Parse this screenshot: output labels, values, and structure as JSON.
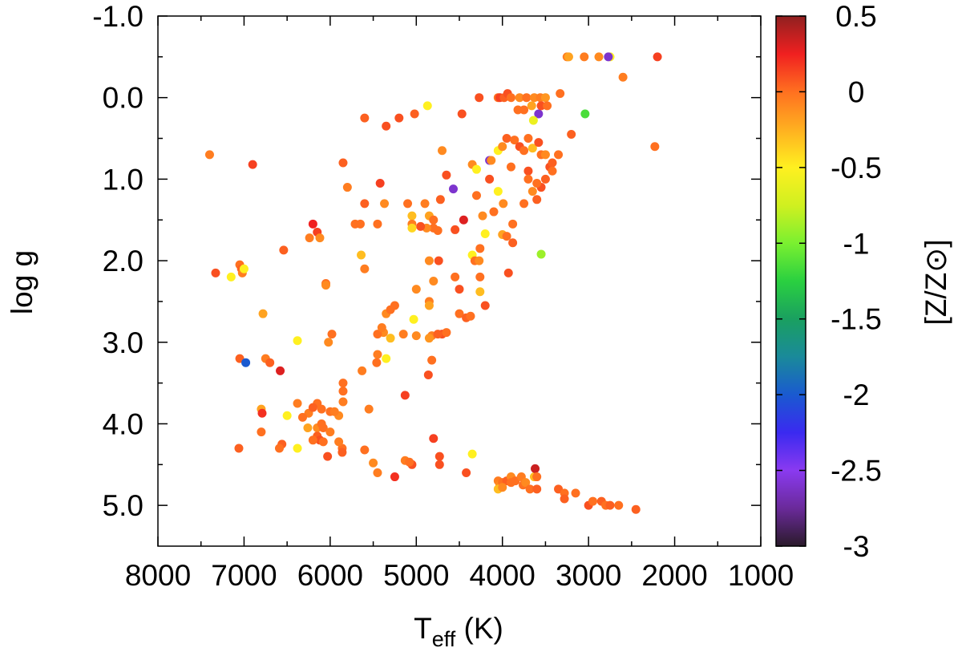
{
  "chart_data": {
    "type": "scatter",
    "xlabel": "T",
    "xlabel_sub": "eff",
    "xlabel_unit": " (K)",
    "ylabel": "log g",
    "colorbar_label": "[Z/Z⊙]",
    "xlim": [
      8000,
      1000
    ],
    "ylim": [
      5.5,
      -1.0
    ],
    "x_reversed": true,
    "y_reversed": true,
    "x_ticks": [
      8000,
      7000,
      6000,
      5000,
      4000,
      3000,
      2000,
      1000
    ],
    "x_tick_labels": [
      "8000",
      "7000",
      "6000",
      "5000",
      "4000",
      "3000",
      "2000",
      "1000"
    ],
    "y_ticks": [
      -1.0,
      0.0,
      1.0,
      2.0,
      3.0,
      4.0,
      5.0
    ],
    "y_tick_labels": [
      "-1.0",
      "0.0",
      "1.0",
      "2.0",
      "3.0",
      "4.0",
      "5.0"
    ],
    "colorbar_range": [
      -3,
      0.5
    ],
    "colorbar_ticks": [
      0.5,
      0,
      -0.5,
      -1,
      -1.5,
      -2,
      -2.5,
      -3
    ],
    "colorbar_tick_labels": [
      "0.5",
      "0",
      "-0.5",
      "-1",
      "-1.5",
      "-2",
      "-2.5",
      "-3"
    ],
    "colormap": [
      [
        -3.0,
        "#2a1a2a"
      ],
      [
        -2.75,
        "#6a2a9a"
      ],
      [
        -2.5,
        "#8a3af0"
      ],
      [
        -2.25,
        "#3a2af0"
      ],
      [
        -2.0,
        "#1a5ad0"
      ],
      [
        -1.75,
        "#1a8a9a"
      ],
      [
        -1.5,
        "#1aa060"
      ],
      [
        -1.25,
        "#2ad040"
      ],
      [
        -1.0,
        "#7af030"
      ],
      [
        -0.75,
        "#d0f020"
      ],
      [
        -0.5,
        "#fff020"
      ],
      [
        -0.25,
        "#ffb020"
      ],
      [
        0.0,
        "#ff7020"
      ],
      [
        0.25,
        "#f02020"
      ],
      [
        0.5,
        "#902020"
      ]
    ],
    "grid": false,
    "legend": "none",
    "points": [
      [
        3250,
        -0.5,
        -0.05
      ],
      [
        3230,
        -0.5,
        -0.2
      ],
      [
        3050,
        -0.5,
        -0.05
      ],
      [
        2880,
        -0.5,
        -0.1
      ],
      [
        2750,
        -0.5,
        -0.5
      ],
      [
        2770,
        -0.5,
        -2.6
      ],
      [
        2200,
        -0.5,
        0.15
      ],
      [
        2600,
        -0.25,
        -0.05
      ],
      [
        2230,
        0.6,
        0.0
      ],
      [
        4050,
        0.0,
        0.0
      ],
      [
        4030,
        0.0,
        0.15
      ],
      [
        3980,
        0.0,
        0.05
      ],
      [
        3940,
        -0.05,
        0.1
      ],
      [
        3900,
        0.0,
        0.0
      ],
      [
        3800,
        0.0,
        -0.1
      ],
      [
        3720,
        0.0,
        0.0
      ],
      [
        3630,
        0.0,
        -0.1
      ],
      [
        3560,
        0.0,
        -0.05
      ],
      [
        3500,
        0.0,
        -0.15
      ],
      [
        3330,
        -0.05,
        0.0
      ],
      [
        4270,
        0.0,
        0.1
      ],
      [
        4870,
        0.1,
        -0.5
      ],
      [
        5020,
        0.2,
        0.05
      ],
      [
        5200,
        0.25,
        0.1
      ],
      [
        5350,
        0.35,
        0.1
      ],
      [
        5600,
        0.25,
        0.05
      ],
      [
        4470,
        0.2,
        0.1
      ],
      [
        3820,
        0.15,
        0.0
      ],
      [
        3750,
        0.15,
        0.0
      ],
      [
        3660,
        0.1,
        -0.2
      ],
      [
        3580,
        0.2,
        -2.6
      ],
      [
        3550,
        0.1,
        0.1
      ],
      [
        3480,
        0.1,
        0.0
      ],
      [
        3640,
        0.28,
        -0.6
      ],
      [
        3040,
        0.2,
        -1.15
      ],
      [
        3200,
        0.45,
        0.05
      ],
      [
        7400,
        0.7,
        -0.05
      ],
      [
        6900,
        0.82,
        0.15
      ],
      [
        5850,
        0.8,
        0.05
      ],
      [
        5420,
        1.05,
        0.15
      ],
      [
        5800,
        1.1,
        -0.05
      ],
      [
        4350,
        0.82,
        -0.1
      ],
      [
        4300,
        0.88,
        -0.5
      ],
      [
        4150,
        0.77,
        -2.6
      ],
      [
        4130,
        0.77,
        -0.1
      ],
      [
        4050,
        0.65,
        -0.5
      ],
      [
        4000,
        0.6,
        -0.1
      ],
      [
        3950,
        0.5,
        0.05
      ],
      [
        3860,
        0.52,
        0.0
      ],
      [
        3800,
        0.6,
        0.1
      ],
      [
        3750,
        0.65,
        0.0
      ],
      [
        3700,
        0.5,
        0.0
      ],
      [
        3650,
        0.62,
        -0.3
      ],
      [
        3580,
        0.55,
        0.1
      ],
      [
        3550,
        0.7,
        0.0
      ],
      [
        3500,
        0.7,
        -0.1
      ],
      [
        3450,
        0.85,
        0.1
      ],
      [
        3350,
        0.7,
        0.0
      ],
      [
        3420,
        0.8,
        0.05
      ],
      [
        3420,
        0.9,
        0.0
      ],
      [
        3500,
        1.0,
        0.05
      ],
      [
        3550,
        1.1,
        0.1
      ],
      [
        3600,
        1.05,
        0.0
      ],
      [
        3650,
        1.15,
        -0.1
      ],
      [
        3700,
        0.9,
        0.1
      ],
      [
        3700,
        1.0,
        0.0
      ],
      [
        3600,
        1.25,
        0.05
      ],
      [
        3750,
        1.3,
        0.0
      ],
      [
        3900,
        0.85,
        0.0
      ],
      [
        4150,
        1.0,
        0.1
      ],
      [
        4050,
        1.15,
        -0.5
      ],
      [
        4300,
        1.2,
        0.0
      ],
      [
        4700,
        0.65,
        -0.1
      ],
      [
        4650,
        0.95,
        0.1
      ],
      [
        4570,
        1.12,
        -2.6
      ],
      [
        4720,
        1.25,
        0.05
      ],
      [
        4900,
        1.3,
        -0.05
      ],
      [
        4850,
        1.45,
        -0.2
      ],
      [
        5100,
        1.3,
        0.0
      ],
      [
        5370,
        1.3,
        -0.1
      ],
      [
        5450,
        1.55,
        0.0
      ],
      [
        5600,
        1.3,
        0.05
      ],
      [
        5050,
        1.45,
        -0.3
      ],
      [
        4800,
        1.5,
        0.0
      ],
      [
        4800,
        1.6,
        0.0
      ],
      [
        4750,
        1.63,
        0.0
      ],
      [
        4550,
        1.62,
        0.1
      ],
      [
        4450,
        1.5,
        0.3
      ],
      [
        4230,
        1.45,
        -0.1
      ],
      [
        4100,
        1.4,
        0.0
      ],
      [
        4200,
        1.67,
        -0.5
      ],
      [
        4000,
        1.68,
        -0.2
      ],
      [
        3950,
        1.7,
        0.0
      ],
      [
        3880,
        1.78,
        0.05
      ],
      [
        3880,
        1.55,
        0.0
      ],
      [
        3990,
        1.3,
        -0.1
      ],
      [
        4880,
        1.6,
        -0.1
      ],
      [
        5050,
        1.55,
        -0.05
      ],
      [
        4950,
        1.58,
        0.1
      ],
      [
        5050,
        1.6,
        -0.4
      ],
      [
        6200,
        1.55,
        0.25
      ],
      [
        6150,
        1.65,
        0.15
      ],
      [
        6240,
        1.72,
        -0.05
      ],
      [
        6120,
        1.72,
        -0.1
      ],
      [
        6540,
        1.87,
        0.05
      ],
      [
        5650,
        1.55,
        0.0
      ],
      [
        5710,
        1.55,
        0.0
      ],
      [
        5600,
        2.1,
        -0.05
      ],
      [
        5640,
        1.93,
        -0.3
      ],
      [
        4850,
        2.0,
        -0.1
      ],
      [
        4740,
        2.0,
        0.1
      ],
      [
        7330,
        2.15,
        0.1
      ],
      [
        7150,
        2.2,
        -0.5
      ],
      [
        7050,
        2.05,
        0.0
      ],
      [
        7030,
        2.1,
        0.05
      ],
      [
        7020,
        2.15,
        -0.05
      ],
      [
        7000,
        2.1,
        -0.5
      ],
      [
        6050,
        2.28,
        0.0
      ],
      [
        6050,
        2.3,
        -0.1
      ],
      [
        4350,
        1.93,
        -0.5
      ],
      [
        4320,
        2.0,
        0.0
      ],
      [
        4270,
        2.0,
        -0.1
      ],
      [
        4260,
        1.85,
        0.0
      ],
      [
        4260,
        2.2,
        0.0
      ],
      [
        3930,
        2.15,
        0.1
      ],
      [
        3550,
        1.92,
        -0.9
      ],
      [
        4550,
        2.2,
        0.0
      ],
      [
        4800,
        2.25,
        -0.1
      ],
      [
        5000,
        2.35,
        -0.1
      ],
      [
        4500,
        2.35,
        0.1
      ],
      [
        4260,
        2.38,
        -0.3
      ],
      [
        4200,
        2.55,
        0.1
      ],
      [
        4850,
        2.5,
        -0.05
      ],
      [
        4850,
        2.55,
        -0.2
      ],
      [
        5250,
        2.55,
        0.0
      ],
      [
        5350,
        2.65,
        -0.1
      ],
      [
        5300,
        2.6,
        0.0
      ],
      [
        4500,
        2.65,
        0.0
      ],
      [
        4420,
        2.7,
        0.05
      ],
      [
        4370,
        2.68,
        0.0
      ],
      [
        6780,
        2.65,
        -0.2
      ],
      [
        6020,
        3.0,
        -0.1
      ],
      [
        5980,
        2.9,
        0.0
      ],
      [
        5380,
        2.88,
        -0.1
      ],
      [
        5300,
        2.95,
        -0.3
      ],
      [
        5150,
        2.9,
        -0.05
      ],
      [
        5000,
        2.92,
        -0.1
      ],
      [
        5030,
        2.72,
        -0.5
      ],
      [
        4820,
        2.92,
        -0.05
      ],
      [
        4700,
        2.9,
        0.1
      ],
      [
        4650,
        2.88,
        0.0
      ],
      [
        4750,
        2.9,
        0.05
      ],
      [
        4850,
        2.95,
        -0.15
      ],
      [
        5450,
        2.9,
        0.0
      ],
      [
        5400,
        2.82,
        -0.05
      ],
      [
        6380,
        2.98,
        -0.5
      ],
      [
        7050,
        3.2,
        0.05
      ],
      [
        6980,
        3.25,
        -2.0
      ],
      [
        6750,
        3.2,
        -0.05
      ],
      [
        6700,
        3.25,
        0.05
      ],
      [
        6580,
        3.35,
        0.3
      ],
      [
        5450,
        3.15,
        -0.05
      ],
      [
        5460,
        3.25,
        0.0
      ],
      [
        5350,
        3.2,
        -0.5
      ],
      [
        5630,
        3.35,
        -0.05
      ],
      [
        4820,
        3.22,
        0.0
      ],
      [
        4860,
        3.4,
        0.1
      ],
      [
        5850,
        3.5,
        0.0
      ],
      [
        5850,
        3.6,
        0.0
      ],
      [
        5850,
        3.73,
        -0.05
      ],
      [
        5130,
        3.65,
        0.15
      ],
      [
        5550,
        3.82,
        -0.05
      ],
      [
        6800,
        3.82,
        -0.2
      ],
      [
        6790,
        3.87,
        0.2
      ],
      [
        6500,
        3.9,
        -0.5
      ],
      [
        6380,
        3.75,
        -0.05
      ],
      [
        6150,
        3.75,
        0.0
      ],
      [
        6250,
        3.87,
        -0.05
      ],
      [
        6200,
        3.8,
        0.05
      ],
      [
        6320,
        3.92,
        0.0
      ],
      [
        6100,
        3.82,
        0.0
      ],
      [
        6000,
        3.85,
        0.0
      ],
      [
        5900,
        3.9,
        -0.1
      ],
      [
        5950,
        3.85,
        -0.05
      ],
      [
        6260,
        4.05,
        -0.2
      ],
      [
        6150,
        4.05,
        -0.1
      ],
      [
        6100,
        4.0,
        0.0
      ],
      [
        6080,
        4.05,
        0.0
      ],
      [
        6000,
        4.1,
        -0.05
      ],
      [
        6150,
        4.15,
        0.05
      ],
      [
        6120,
        4.2,
        0.1
      ],
      [
        6200,
        4.2,
        0.0
      ],
      [
        6080,
        4.22,
        0.0
      ],
      [
        6800,
        4.1,
        0.0
      ],
      [
        6560,
        4.25,
        0.05
      ],
      [
        6590,
        4.3,
        0.0
      ],
      [
        6380,
        4.3,
        -0.5
      ],
      [
        7060,
        4.3,
        0.05
      ],
      [
        5860,
        4.3,
        0.0
      ],
      [
        5860,
        4.35,
        0.05
      ],
      [
        6030,
        4.4,
        0.1
      ],
      [
        5900,
        4.22,
        -0.05
      ],
      [
        5600,
        4.32,
        0.0
      ],
      [
        5500,
        4.48,
        -0.1
      ],
      [
        5450,
        4.6,
        -0.05
      ],
      [
        5250,
        4.65,
        0.2
      ],
      [
        5130,
        4.45,
        -0.05
      ],
      [
        5050,
        4.5,
        0.1
      ],
      [
        5080,
        4.47,
        0.0
      ],
      [
        4800,
        4.18,
        0.15
      ],
      [
        4730,
        4.4,
        0.1
      ],
      [
        4730,
        4.5,
        0.1
      ],
      [
        4420,
        4.6,
        0.1
      ],
      [
        4350,
        4.37,
        -0.5
      ],
      [
        4050,
        4.7,
        -0.05
      ],
      [
        4030,
        4.75,
        -0.1
      ],
      [
        4000,
        4.72,
        0.0
      ],
      [
        3950,
        4.7,
        0.05
      ],
      [
        3900,
        4.65,
        -0.1
      ],
      [
        3850,
        4.7,
        0.0
      ],
      [
        3780,
        4.65,
        -0.05
      ],
      [
        3760,
        4.75,
        0.0
      ],
      [
        3730,
        4.72,
        -0.1
      ],
      [
        3680,
        4.8,
        0.0
      ],
      [
        3630,
        4.65,
        -0.3
      ],
      [
        3620,
        4.55,
        0.35
      ],
      [
        3600,
        4.8,
        0.05
      ],
      [
        3900,
        4.72,
        0.0
      ],
      [
        4050,
        4.8,
        -0.3
      ],
      [
        4000,
        4.78,
        -0.1
      ],
      [
        3350,
        4.8,
        0.05
      ],
      [
        3280,
        4.85,
        0.0
      ],
      [
        3280,
        4.92,
        0.05
      ],
      [
        3150,
        4.85,
        0.0
      ],
      [
        3000,
        5.0,
        0.1
      ],
      [
        2950,
        4.95,
        0.0
      ],
      [
        2850,
        4.95,
        0.05
      ],
      [
        2800,
        5.0,
        0.0
      ],
      [
        2750,
        5.0,
        0.05
      ],
      [
        2650,
        5.0,
        0.0
      ],
      [
        2450,
        5.05,
        0.05
      ],
      [
        3600,
        4.65,
        0.0
      ]
    ]
  }
}
